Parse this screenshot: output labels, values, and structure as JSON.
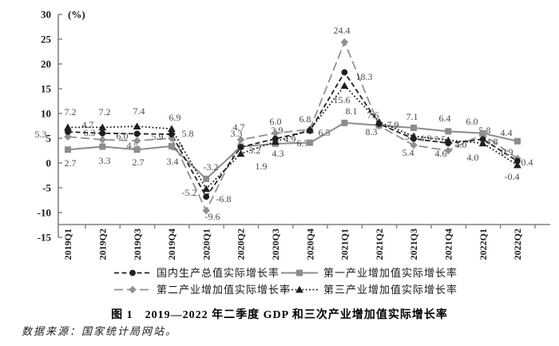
{
  "figure": {
    "caption": "图 1　2019—2022 年二季度 GDP 和三次产业增加值实际增长率",
    "source_note": "数据来源：国家统计局网站。",
    "unit_label": "(%)"
  },
  "chart_data": {
    "type": "line",
    "title": "图 1 2019—2022 年二季度 GDP 和三次产业增加值实际增长率",
    "xlabel": "",
    "ylabel": "(%)",
    "ylim": [
      -15,
      30
    ],
    "ytick_interval": 5,
    "yticks": [
      30,
      25,
      20,
      15,
      10,
      5,
      0,
      -5,
      -10,
      -15
    ],
    "grid": false,
    "legend_position": "bottom",
    "categories": [
      "2019Q1",
      "2019Q2",
      "2019Q3",
      "2019Q4",
      "2020Q1",
      "2020Q2",
      "2020Q3",
      "2020Q4",
      "2021Q1",
      "2021Q2",
      "2021Q3",
      "2021Q4",
      "2022Q1",
      "2022Q2"
    ],
    "series": [
      {
        "name": "国内生产总值实际增长率",
        "line": "dashed",
        "marker": "circle",
        "color": "#1f1f1f",
        "values": [
          6.3,
          6.0,
          5.9,
          5.8,
          -6.8,
          3.2,
          4.9,
          6.5,
          18.3,
          7.9,
          4.9,
          4.0,
          4.8,
          0.4
        ]
      },
      {
        "name": "第一产业增加值实际增长率",
        "line": "solid",
        "marker": "square",
        "color": "#8c8c8c",
        "values": [
          2.7,
          3.3,
          2.7,
          3.4,
          -3.2,
          3.3,
          3.9,
          4.1,
          8.1,
          7.6,
          7.1,
          6.4,
          6.0,
          4.4
        ]
      },
      {
        "name": "第二产业增加值实际增长率",
        "line": "long-dash",
        "marker": "diamond",
        "color": "#919191",
        "values": [
          5.3,
          4.7,
          4.5,
          5.0,
          -9.6,
          4.7,
          6.0,
          6.8,
          24.4,
          7.5,
          3.6,
          2.5,
          5.8,
          0.9
        ]
      },
      {
        "name": "第三产业增加值实际增长率",
        "line": "dotted",
        "marker": "triangle",
        "color": "#1f1f1f",
        "values": [
          7.2,
          7.2,
          7.4,
          6.9,
          -5.2,
          1.9,
          4.3,
          6.7,
          15.6,
          8.3,
          5.4,
          4.6,
          4.0,
          -0.4
        ]
      }
    ],
    "label_color": "#4a4a4a",
    "axis_color": "#808080",
    "text_color": "#1a1a1a"
  }
}
